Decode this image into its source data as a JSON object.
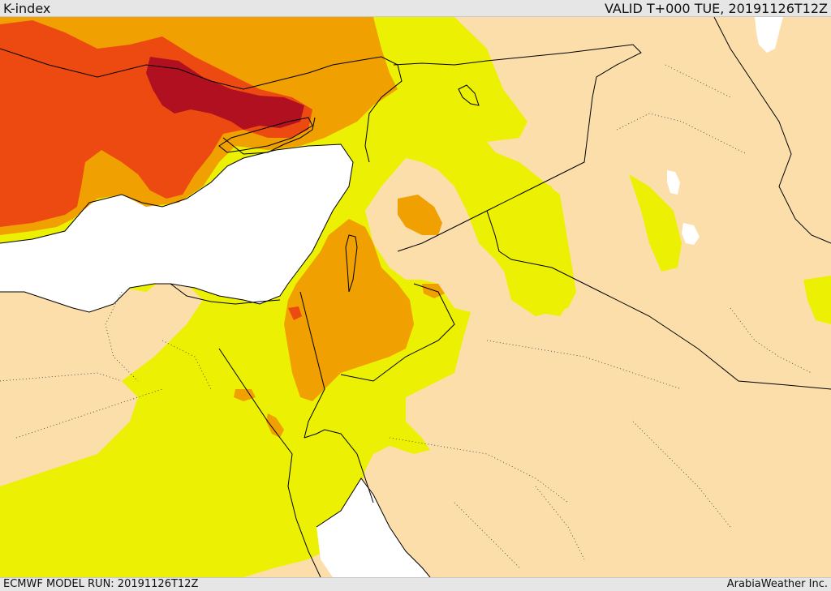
{
  "header": {
    "title": "K-index",
    "valid_time": "VALID T+000 TUE, 20191126T12Z"
  },
  "footer": {
    "model_run": "ECMWF MODEL RUN: 20191126T12Z",
    "credit": "ArabiaWeather Inc."
  },
  "colors": {
    "land_background": "#fcdeab",
    "sea": "#ffffff",
    "k_level_1": "#ecf003",
    "k_level_2": "#f0a000",
    "k_level_3": "#ec4a10",
    "k_level_4": "#b01020",
    "border_line": "#000000"
  }
}
